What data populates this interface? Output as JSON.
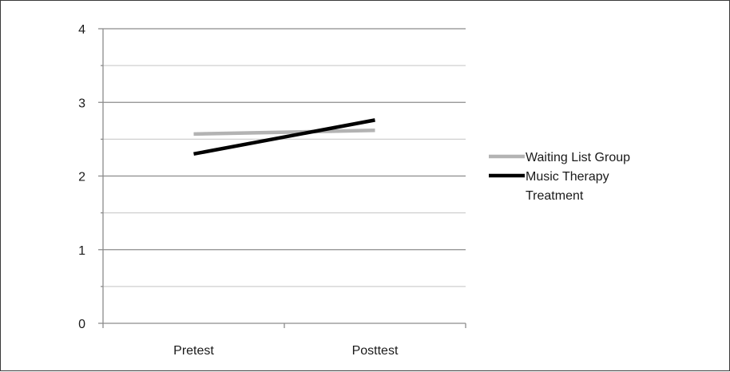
{
  "chart_data": {
    "type": "line",
    "categories": [
      "Pretest",
      "Posttest"
    ],
    "series": [
      {
        "name": "Waiting List Group",
        "values": [
          2.57,
          2.62
        ],
        "color": "#b3b3b3"
      },
      {
        "name": "Music Therapy Treatment",
        "legend_lines": [
          "Music Therapy",
          "Treatment"
        ],
        "values": [
          2.3,
          2.76
        ],
        "color": "#000000"
      }
    ],
    "y_ticks": [
      "0",
      "1",
      "2",
      "3",
      "4"
    ],
    "ylim": [
      0,
      4
    ],
    "grid": true,
    "minor_grid": true,
    "legend_position": "right"
  }
}
